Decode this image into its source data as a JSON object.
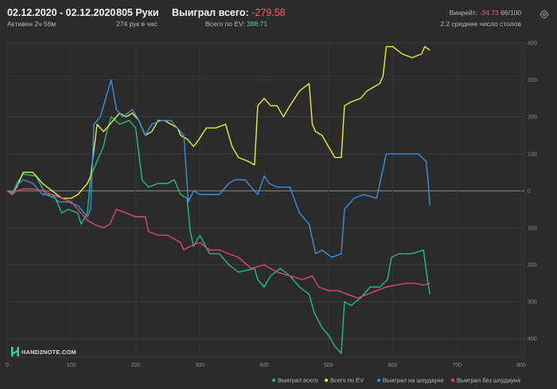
{
  "header": {
    "date_range": "02.12.2020 - 02.12.2020",
    "active": "Активен 2ч 56м",
    "hands": "805 Руки",
    "hands_per_hour": "274 рук в час",
    "won_total_label": "Выиграл всего:",
    "won_total_value": "-279.58",
    "ev_total_label": "Всего по EV:",
    "ev_total_value": "388.71",
    "winrate_label": "Винрейт:",
    "winrate_value": "-34.73",
    "winrate_suffix": "66/100",
    "avg_tables": "2.2 среднее число столов"
  },
  "logo": {
    "text": "HAND2NOTE.COM"
  },
  "colors": {
    "background": "#2b2b2b",
    "won": "#21c07a",
    "ev": "#ecec3c",
    "showdown": "#3b8fe0",
    "non_showdown": "#e2447a",
    "negative": "#ff5a7a",
    "positive": "#3fd0a0"
  },
  "chart_data": {
    "type": "line",
    "xlabel": "",
    "ylabel": "",
    "xlim": [
      0,
      805
    ],
    "ylim": [
      -450,
      400
    ],
    "x_ticks": [
      "0",
      "100",
      "200",
      "300",
      "400",
      "500",
      "600",
      "700",
      "800"
    ],
    "y_tick_values": [
      400,
      300,
      200,
      100,
      0,
      -100,
      -200,
      -300,
      -400
    ],
    "y_tick_labels": [
      "400",
      "300",
      "200",
      "100",
      "0",
      "100",
      "200",
      "300",
      "400"
    ],
    "grid": true,
    "legend_position": "bottom-right",
    "series": [
      {
        "name": "Выиграл всего",
        "color": "#21c07a",
        "points": [
          [
            0,
            0
          ],
          [
            8,
            -10
          ],
          [
            15,
            20
          ],
          [
            25,
            45
          ],
          [
            45,
            40
          ],
          [
            60,
            -10
          ],
          [
            75,
            -20
          ],
          [
            85,
            -60
          ],
          [
            95,
            -50
          ],
          [
            110,
            -60
          ],
          [
            115,
            -90
          ],
          [
            125,
            -60
          ],
          [
            130,
            40
          ],
          [
            140,
            80
          ],
          [
            150,
            120
          ],
          [
            155,
            160
          ],
          [
            162,
            200
          ],
          [
            175,
            180
          ],
          [
            190,
            190
          ],
          [
            200,
            170
          ],
          [
            210,
            30
          ],
          [
            220,
            10
          ],
          [
            235,
            20
          ],
          [
            250,
            20
          ],
          [
            260,
            30
          ],
          [
            270,
            -10
          ],
          [
            280,
            -20
          ],
          [
            285,
            -110
          ],
          [
            290,
            -150
          ],
          [
            300,
            -120
          ],
          [
            315,
            -170
          ],
          [
            330,
            -170
          ],
          [
            345,
            -200
          ],
          [
            360,
            -220
          ],
          [
            385,
            -210
          ],
          [
            390,
            -240
          ],
          [
            400,
            -260
          ],
          [
            410,
            -230
          ],
          [
            425,
            -210
          ],
          [
            440,
            -230
          ],
          [
            455,
            -260
          ],
          [
            470,
            -280
          ],
          [
            478,
            -330
          ],
          [
            490,
            -370
          ],
          [
            500,
            -390
          ],
          [
            510,
            -420
          ],
          [
            520,
            -440
          ],
          [
            525,
            -300
          ],
          [
            535,
            -310
          ],
          [
            550,
            -290
          ],
          [
            565,
            -260
          ],
          [
            580,
            -260
          ],
          [
            592,
            -240
          ],
          [
            598,
            -180
          ],
          [
            610,
            -170
          ],
          [
            630,
            -170
          ],
          [
            648,
            -160
          ],
          [
            655,
            -250
          ],
          [
            658,
            -280
          ]
        ]
      },
      {
        "name": "Всего по EV",
        "color": "#ecec3c",
        "points": [
          [
            0,
            0
          ],
          [
            8,
            -5
          ],
          [
            15,
            10
          ],
          [
            25,
            50
          ],
          [
            40,
            50
          ],
          [
            55,
            20
          ],
          [
            70,
            0
          ],
          [
            85,
            -20
          ],
          [
            100,
            -20
          ],
          [
            110,
            -10
          ],
          [
            125,
            20
          ],
          [
            130,
            40
          ],
          [
            140,
            180
          ],
          [
            150,
            160
          ],
          [
            160,
            180
          ],
          [
            175,
            210
          ],
          [
            185,
            200
          ],
          [
            195,
            210
          ],
          [
            205,
            190
          ],
          [
            215,
            150
          ],
          [
            225,
            160
          ],
          [
            235,
            190
          ],
          [
            245,
            190
          ],
          [
            255,
            180
          ],
          [
            265,
            170
          ],
          [
            270,
            150
          ],
          [
            280,
            140
          ],
          [
            290,
            120
          ],
          [
            295,
            130
          ],
          [
            310,
            170
          ],
          [
            325,
            170
          ],
          [
            340,
            180
          ],
          [
            350,
            120
          ],
          [
            360,
            90
          ],
          [
            375,
            80
          ],
          [
            385,
            70
          ],
          [
            390,
            230
          ],
          [
            400,
            250
          ],
          [
            410,
            230
          ],
          [
            420,
            230
          ],
          [
            430,
            200
          ],
          [
            440,
            230
          ],
          [
            455,
            270
          ],
          [
            470,
            290
          ],
          [
            475,
            180
          ],
          [
            480,
            160
          ],
          [
            490,
            150
          ],
          [
            500,
            120
          ],
          [
            510,
            90
          ],
          [
            520,
            90
          ],
          [
            525,
            230
          ],
          [
            535,
            240
          ],
          [
            550,
            250
          ],
          [
            560,
            270
          ],
          [
            570,
            280
          ],
          [
            580,
            290
          ],
          [
            585,
            310
          ],
          [
            590,
            390
          ],
          [
            600,
            390
          ],
          [
            615,
            370
          ],
          [
            630,
            360
          ],
          [
            645,
            370
          ],
          [
            650,
            390
          ],
          [
            658,
            380
          ]
        ]
      },
      {
        "name": "Выиграл на шоудауне",
        "color": "#3b8fe0",
        "points": [
          [
            0,
            0
          ],
          [
            8,
            -5
          ],
          [
            15,
            15
          ],
          [
            25,
            30
          ],
          [
            40,
            20
          ],
          [
            55,
            -10
          ],
          [
            70,
            -10
          ],
          [
            80,
            -30
          ],
          [
            95,
            -30
          ],
          [
            110,
            -40
          ],
          [
            125,
            -70
          ],
          [
            130,
            -50
          ],
          [
            135,
            180
          ],
          [
            145,
            200
          ],
          [
            155,
            260
          ],
          [
            162,
            300
          ],
          [
            170,
            220
          ],
          [
            180,
            200
          ],
          [
            195,
            220
          ],
          [
            205,
            190
          ],
          [
            215,
            150
          ],
          [
            225,
            180
          ],
          [
            240,
            190
          ],
          [
            255,
            190
          ],
          [
            265,
            170
          ],
          [
            275,
            150
          ],
          [
            282,
            -30
          ],
          [
            290,
            0
          ],
          [
            300,
            -10
          ],
          [
            315,
            -10
          ],
          [
            330,
            -10
          ],
          [
            345,
            20
          ],
          [
            355,
            30
          ],
          [
            370,
            30
          ],
          [
            380,
            10
          ],
          [
            390,
            -10
          ],
          [
            400,
            40
          ],
          [
            408,
            20
          ],
          [
            420,
            10
          ],
          [
            440,
            10
          ],
          [
            455,
            -60
          ],
          [
            470,
            -90
          ],
          [
            480,
            -170
          ],
          [
            490,
            -160
          ],
          [
            505,
            -180
          ],
          [
            520,
            -170
          ],
          [
            525,
            -50
          ],
          [
            540,
            -20
          ],
          [
            555,
            -10
          ],
          [
            575,
            -20
          ],
          [
            590,
            100
          ],
          [
            610,
            100
          ],
          [
            640,
            100
          ],
          [
            652,
            80
          ],
          [
            655,
            30
          ],
          [
            658,
            -40
          ]
        ]
      },
      {
        "name": "Выиграл без шоудауна",
        "color": "#e2447a",
        "points": [
          [
            0,
            0
          ],
          [
            8,
            -10
          ],
          [
            15,
            0
          ],
          [
            25,
            5
          ],
          [
            40,
            5
          ],
          [
            55,
            0
          ],
          [
            70,
            -10
          ],
          [
            85,
            -20
          ],
          [
            100,
            -30
          ],
          [
            115,
            -60
          ],
          [
            125,
            -80
          ],
          [
            135,
            -90
          ],
          [
            150,
            -100
          ],
          [
            160,
            -90
          ],
          [
            170,
            -50
          ],
          [
            185,
            -60
          ],
          [
            200,
            -70
          ],
          [
            215,
            -70
          ],
          [
            220,
            -110
          ],
          [
            235,
            -120
          ],
          [
            250,
            -120
          ],
          [
            260,
            -130
          ],
          [
            270,
            -140
          ],
          [
            275,
            -160
          ],
          [
            285,
            -150
          ],
          [
            300,
            -140
          ],
          [
            315,
            -160
          ],
          [
            330,
            -160
          ],
          [
            345,
            -170
          ],
          [
            360,
            -180
          ],
          [
            380,
            -210
          ],
          [
            400,
            -200
          ],
          [
            420,
            -220
          ],
          [
            440,
            -230
          ],
          [
            460,
            -240
          ],
          [
            475,
            -230
          ],
          [
            485,
            -260
          ],
          [
            500,
            -270
          ],
          [
            515,
            -270
          ],
          [
            530,
            -280
          ],
          [
            545,
            -290
          ],
          [
            560,
            -280
          ],
          [
            575,
            -270
          ],
          [
            590,
            -260
          ],
          [
            605,
            -255
          ],
          [
            620,
            -250
          ],
          [
            635,
            -250
          ],
          [
            648,
            -255
          ],
          [
            658,
            -250
          ]
        ]
      }
    ]
  }
}
